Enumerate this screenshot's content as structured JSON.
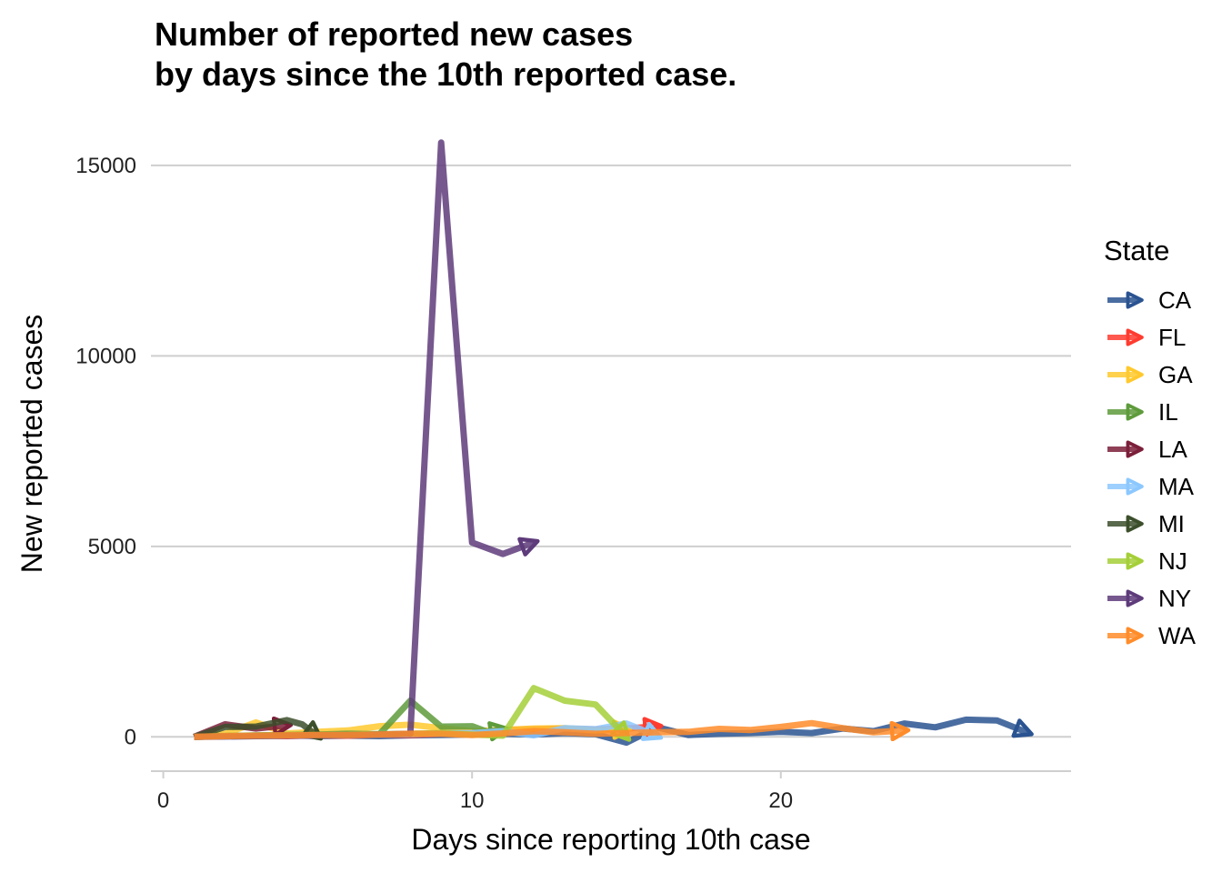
{
  "chart_data": {
    "type": "line",
    "title_line1": "Number of reported new cases",
    "title_line2": "by days since the 10th reported case.",
    "xlabel": "Days since reporting 10th case",
    "ylabel": "New reported cases",
    "xlim": [
      -0.4,
      29.4
    ],
    "ylim": [
      -900,
      16000
    ],
    "xticks": [
      0,
      10,
      20
    ],
    "yticks": [
      0,
      5000,
      10000,
      15000
    ],
    "grid": "horizontal",
    "legend": {
      "title": "State",
      "position": "right"
    },
    "series": [
      {
        "name": "CA",
        "color": "#2A5391",
        "x": [
          1,
          2,
          3,
          4,
          5,
          6,
          7,
          8,
          9,
          10,
          11,
          12,
          13,
          14,
          15,
          16,
          17,
          18,
          19,
          20,
          21,
          22,
          23,
          24,
          25,
          26,
          27,
          28
        ],
        "y": [
          0,
          30,
          20,
          40,
          20,
          30,
          20,
          40,
          50,
          60,
          80,
          60,
          100,
          70,
          -150,
          250,
          50,
          80,
          100,
          130,
          100,
          220,
          150,
          350,
          250,
          450,
          430,
          110
        ]
      },
      {
        "name": "FL",
        "color": "#FF3B2F",
        "x": [
          1,
          2,
          3,
          4,
          5,
          6,
          7,
          8,
          9,
          10,
          11,
          12,
          13,
          14,
          15,
          16
        ],
        "y": [
          0,
          20,
          30,
          20,
          40,
          30,
          60,
          50,
          80,
          100,
          180,
          200,
          220,
          190,
          220,
          280
        ]
      },
      {
        "name": "GA",
        "color": "#FFC92E",
        "x": [
          1,
          2,
          3,
          4,
          5,
          6,
          7,
          8,
          9,
          10,
          11,
          12,
          13,
          14,
          15
        ],
        "y": [
          0,
          80,
          380,
          90,
          130,
          170,
          280,
          320,
          230,
          150,
          180,
          220,
          230,
          170,
          200
        ]
      },
      {
        "name": "IL",
        "color": "#5E9B3C",
        "x": [
          1,
          2,
          3,
          4,
          5,
          6,
          7,
          8,
          9,
          10,
          10.5,
          11
        ],
        "y": [
          0,
          20,
          40,
          50,
          60,
          80,
          70,
          950,
          270,
          280,
          130,
          200
        ]
      },
      {
        "name": "LA",
        "color": "#7B1F3A",
        "x": [
          1,
          2,
          3,
          4
        ],
        "y": [
          0,
          330,
          220,
          300
        ]
      },
      {
        "name": "MA",
        "color": "#8CC8FF",
        "x": [
          1,
          2,
          3,
          4,
          5,
          6,
          7,
          8,
          9,
          10,
          11,
          12,
          13,
          14,
          15,
          16
        ],
        "y": [
          0,
          10,
          20,
          30,
          40,
          50,
          60,
          70,
          90,
          100,
          150,
          40,
          230,
          200,
          350,
          20
        ]
      },
      {
        "name": "MI",
        "color": "#3C4F2B",
        "x": [
          1,
          2,
          3,
          4,
          4.5,
          5
        ],
        "y": [
          0,
          260,
          270,
          440,
          330,
          20
        ]
      },
      {
        "name": "NJ",
        "color": "#A5CF38",
        "x": [
          1,
          2,
          3,
          4,
          5,
          6,
          7,
          8,
          9,
          10,
          11,
          12,
          13,
          14,
          15
        ],
        "y": [
          0,
          20,
          30,
          40,
          50,
          60,
          70,
          80,
          100,
          60,
          30,
          1280,
          950,
          850,
          0
        ]
      },
      {
        "name": "NY",
        "color": "#5E3B7A",
        "x": [
          1,
          2,
          3,
          4,
          5,
          6,
          7,
          8,
          9,
          10,
          11,
          12
        ],
        "y": [
          0,
          10,
          20,
          30,
          40,
          50,
          60,
          80,
          15600,
          5100,
          4800,
          5100
        ]
      },
      {
        "name": "WA",
        "color": "#FF8C2A",
        "x": [
          1,
          2,
          3,
          4,
          5,
          6,
          7,
          8,
          9,
          10,
          11,
          12,
          13,
          14,
          15,
          16,
          17,
          18,
          19,
          20,
          21,
          22,
          23,
          24
        ],
        "y": [
          0,
          20,
          30,
          40,
          50,
          50,
          60,
          80,
          80,
          50,
          90,
          150,
          120,
          80,
          100,
          120,
          130,
          210,
          180,
          260,
          360,
          230,
          120,
          170
        ]
      }
    ]
  }
}
